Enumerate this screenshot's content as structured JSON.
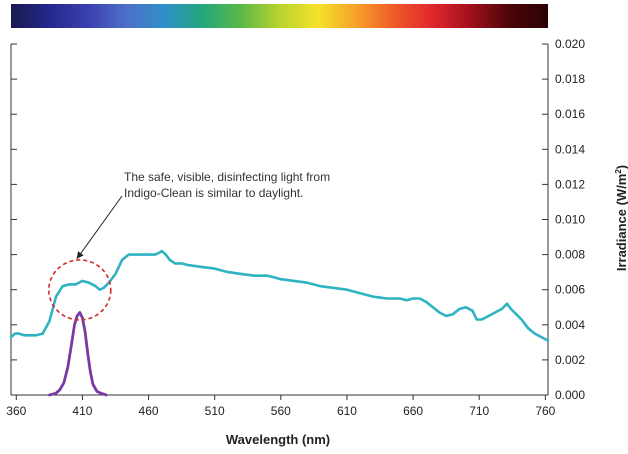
{
  "chart_data": {
    "type": "line",
    "title": "",
    "xlabel": "Wavelength (nm)",
    "ylabel": "Irradiance (W/m²)",
    "ylabel_base": "Irradiance (W/m",
    "ylabel_sup": "2",
    "ylabel_close": ")",
    "xlim": [
      356,
      762
    ],
    "ylim": [
      0,
      0.02
    ],
    "x_ticks": [
      360,
      410,
      460,
      510,
      560,
      610,
      660,
      710,
      760
    ],
    "y_ticks": [
      "0.000",
      "0.002",
      "0.004",
      "0.006",
      "0.008",
      "0.010",
      "0.012",
      "0.014",
      "0.016",
      "0.018",
      "0.020"
    ],
    "y_axis_side": "right",
    "grid": false,
    "spectrum_bar_colors": [
      "#1b1a4e",
      "#24288c",
      "#3a3fb0",
      "#4f6fc8",
      "#2f8fc7",
      "#23a67a",
      "#5cb845",
      "#b8d431",
      "#f5e12a",
      "#f7a12a",
      "#ef5a28",
      "#e0262e",
      "#a0101a",
      "#4a0508",
      "#2a0204"
    ],
    "annotation": {
      "lines": [
        "The safe, visible, disinfecting light from",
        "Indigo-Clean is similar to daylight."
      ],
      "target_x": 408,
      "target_y": 0.0061
    },
    "series": [
      {
        "color": "#2fb3c2",
        "x": [
          356,
          359,
          362,
          366,
          370,
          375,
          380,
          385,
          390,
          395,
          400,
          405,
          410,
          415,
          420,
          423,
          426,
          430,
          435,
          440,
          445,
          450,
          455,
          460,
          465,
          468,
          470,
          473,
          476,
          478,
          480,
          485,
          490,
          500,
          510,
          520,
          530,
          540,
          550,
          555,
          560,
          570,
          580,
          590,
          600,
          610,
          620,
          630,
          640,
          650,
          655,
          660,
          665,
          670,
          675,
          680,
          685,
          690,
          695,
          700,
          705,
          708,
          712,
          717,
          722,
          727,
          731,
          734,
          738,
          742,
          747,
          752,
          757,
          762
        ],
        "y": [
          0.0033,
          0.0035,
          0.0035,
          0.0034,
          0.0034,
          0.0034,
          0.0035,
          0.0042,
          0.0056,
          0.0062,
          0.0063,
          0.0063,
          0.0065,
          0.0064,
          0.0062,
          0.006,
          0.0061,
          0.0064,
          0.0069,
          0.0077,
          0.008,
          0.008,
          0.008,
          0.008,
          0.008,
          0.0081,
          0.0082,
          0.008,
          0.0077,
          0.0076,
          0.0075,
          0.0075,
          0.0074,
          0.0073,
          0.0072,
          0.007,
          0.0069,
          0.0068,
          0.0068,
          0.0067,
          0.0066,
          0.0065,
          0.0064,
          0.0062,
          0.0061,
          0.006,
          0.0058,
          0.0056,
          0.0055,
          0.0055,
          0.0054,
          0.0055,
          0.0055,
          0.0053,
          0.005,
          0.0047,
          0.0045,
          0.0046,
          0.0049,
          0.005,
          0.0048,
          0.0043,
          0.0043,
          0.0045,
          0.0047,
          0.0049,
          0.0052,
          0.0049,
          0.0046,
          0.0043,
          0.0038,
          0.0035,
          0.0033,
          0.0031
        ]
      },
      {
        "color": "#7a3aa4",
        "x": [
          385,
          390,
          393,
          396,
          399,
          402,
          404,
          406,
          408,
          410,
          412,
          414,
          416,
          418,
          421,
          424,
          428
        ],
        "y": [
          0.0,
          0.0001,
          0.0003,
          0.0007,
          0.0016,
          0.003,
          0.004,
          0.0045,
          0.0047,
          0.0044,
          0.0036,
          0.0024,
          0.0013,
          0.0006,
          0.0002,
          0.0001,
          0.0
        ]
      }
    ]
  }
}
